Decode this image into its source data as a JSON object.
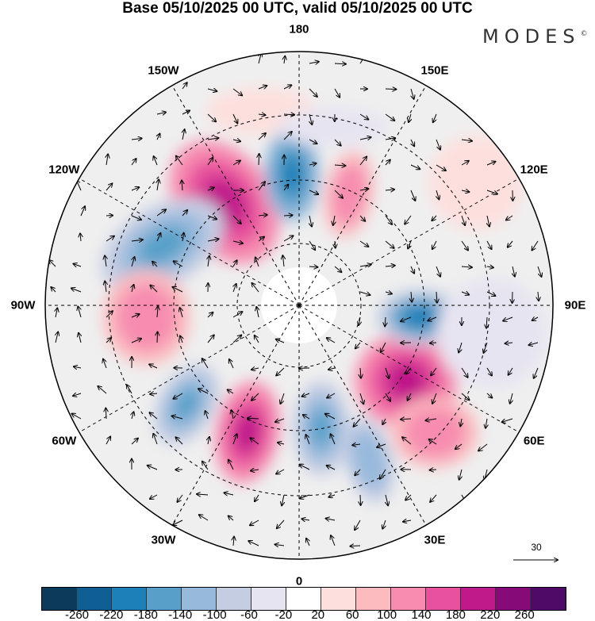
{
  "title": "Base 05/10/2025 00 UTC, valid 05/10/2025 00 UTC",
  "logo": "MODES",
  "logo_mark": "©",
  "longitude_labels": [
    {
      "text": "180",
      "lon": 180
    },
    {
      "text": "150E",
      "lon": 150
    },
    {
      "text": "120E",
      "lon": 120
    },
    {
      "text": "90E",
      "lon": 90
    },
    {
      "text": "60E",
      "lon": 60
    },
    {
      "text": "30E",
      "lon": 30
    },
    {
      "text": "0",
      "lon": 0
    },
    {
      "text": "30W",
      "lon": -30
    },
    {
      "text": "60W",
      "lon": -60
    },
    {
      "text": "90W",
      "lon": -90
    },
    {
      "text": "120W",
      "lon": -120
    },
    {
      "text": "150W",
      "lon": -150
    }
  ],
  "vector_scale_label": "30",
  "colorbar": {
    "colors": [
      "#0b3a5b",
      "#0f5f95",
      "#1d80b9",
      "#58a0c9",
      "#97b9dc",
      "#c5cde3",
      "#e7e4f1",
      "#ffffff",
      "#fde0de",
      "#fbbbbf",
      "#f78cb0",
      "#e7519d",
      "#c0198a",
      "#860b78",
      "#4f0a68"
    ],
    "ticks": [
      "-260",
      "-220",
      "-180",
      "-140",
      "-100",
      "-60",
      "-20",
      "20",
      "60",
      "100",
      "140",
      "180",
      "220",
      "260"
    ]
  }
}
